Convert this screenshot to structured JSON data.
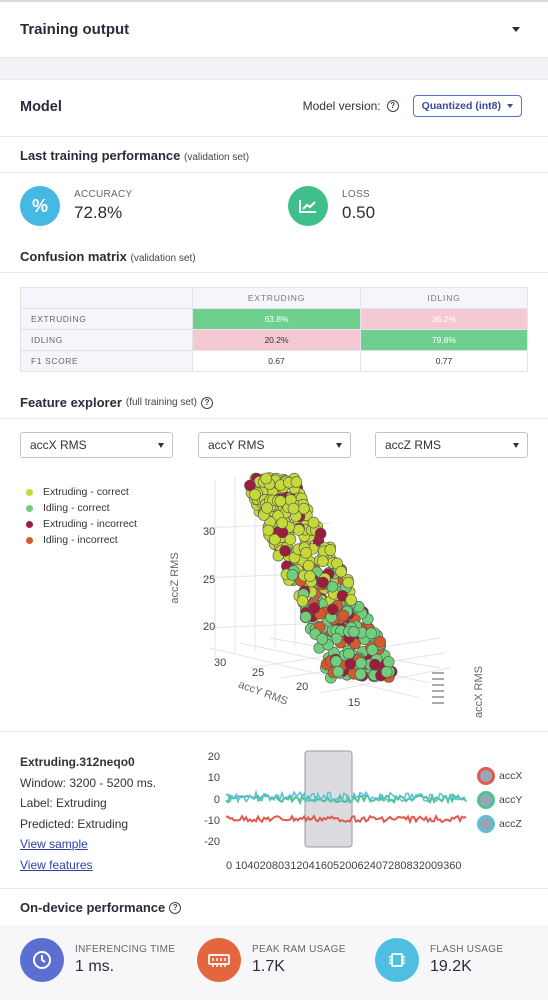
{
  "header": {
    "title": "Training output"
  },
  "model": {
    "title": "Model",
    "version_label": "Model version:",
    "version_value": "Quantized (int8)"
  },
  "last_perf": {
    "title": "Last training performance",
    "subtitle": "(validation set)",
    "accuracy_label": "ACCURACY",
    "accuracy_value": "72.8%",
    "loss_label": "LOSS",
    "loss_value": "0.50"
  },
  "confusion": {
    "title": "Confusion matrix",
    "subtitle": "(validation set)",
    "columns": [
      "EXTRUDING",
      "IDLING"
    ],
    "rows": [
      {
        "label": "EXTRUDING",
        "cells": [
          "63.8%",
          "36.2%"
        ]
      },
      {
        "label": "IDLING",
        "cells": [
          "20.2%",
          "79.8%"
        ]
      },
      {
        "label": "F1 SCORE",
        "cells": [
          "0.67",
          "0.77"
        ]
      }
    ]
  },
  "feature_explorer": {
    "title": "Feature explorer",
    "subtitle": "(full training set)",
    "selects": [
      "accX RMS",
      "accY RMS",
      "accZ RMS"
    ],
    "legend": [
      {
        "label": "Extruding - correct",
        "color": "#c5d93a"
      },
      {
        "label": "Idling - correct",
        "color": "#6fcf7a"
      },
      {
        "label": "Extruding - incorrect",
        "color": "#9c1c3b"
      },
      {
        "label": "Idling - incorrect",
        "color": "#d55a2a"
      }
    ],
    "axis_z": "accZ RMS",
    "axis_y": "accY RMS",
    "axis_x": "accX RMS",
    "z_ticks": [
      "30",
      "25",
      "20"
    ],
    "y_ticks": [
      "30",
      "25",
      "20",
      "15"
    ]
  },
  "sample": {
    "name": "Extruding.312neqo0",
    "window": "Window: 3200 - 5200 ms.",
    "label": "Label: Extruding",
    "predicted": "Predicted: Extruding",
    "view_sample": "View sample",
    "view_features": "View features",
    "y_ticks": [
      "20",
      "10",
      "0",
      "-10",
      "-20"
    ],
    "x_ticks": "0   1040208031204160520062407280832009360",
    "legend": [
      {
        "label": "accX",
        "color": "#e05a4e"
      },
      {
        "label": "accY",
        "color": "#4fc28f"
      },
      {
        "label": "accZ",
        "color": "#5bbfd8"
      }
    ]
  },
  "on_device": {
    "title": "On-device performance",
    "items": [
      {
        "label": "INFERENCING TIME",
        "value": "1 ms.",
        "color": "#5a6fd0",
        "icon": "clock-icon"
      },
      {
        "label": "PEAK RAM USAGE",
        "value": "1.7K",
        "color": "#e3663f",
        "icon": "memory-icon"
      },
      {
        "label": "FLASH USAGE",
        "value": "19.2K",
        "color": "#4ebfe0",
        "icon": "chip-icon"
      }
    ]
  }
}
